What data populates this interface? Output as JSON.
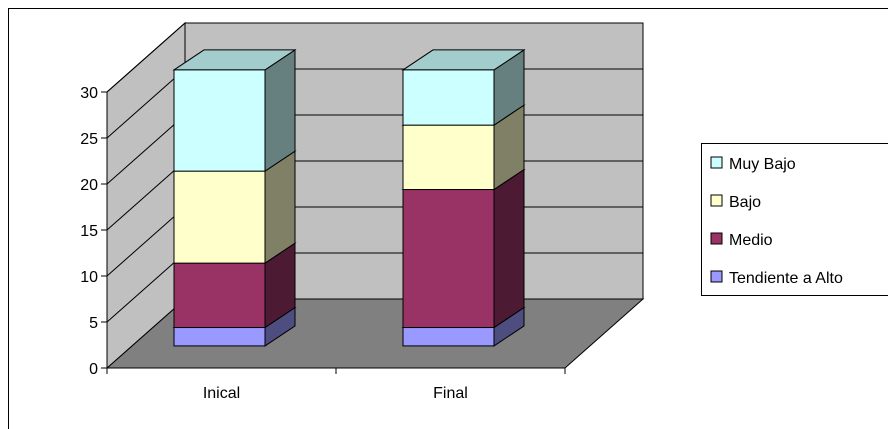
{
  "chart_data": {
    "type": "bar",
    "stacked": true,
    "three_d": true,
    "categories": [
      "Inical",
      "Final"
    ],
    "series": [
      {
        "name": "Tendiente a Alto",
        "values": [
          2,
          2
        ],
        "color": "#9999FF"
      },
      {
        "name": "Medio",
        "values": [
          7,
          15
        ],
        "color": "#993366"
      },
      {
        "name": "Bajo",
        "values": [
          10,
          7
        ],
        "color": "#FFFFCC"
      },
      {
        "name": "Muy Bajo",
        "values": [
          11,
          6
        ],
        "color": "#CCFFFF"
      }
    ],
    "ylim": [
      0,
      30
    ],
    "yticks": [
      "0",
      "5",
      "10",
      "15",
      "20",
      "25",
      "30"
    ],
    "grid": true,
    "legend_position": "right",
    "colors": {
      "wall": "#C0C0C0",
      "floor": "#808080",
      "gridline": "#000000"
    }
  }
}
